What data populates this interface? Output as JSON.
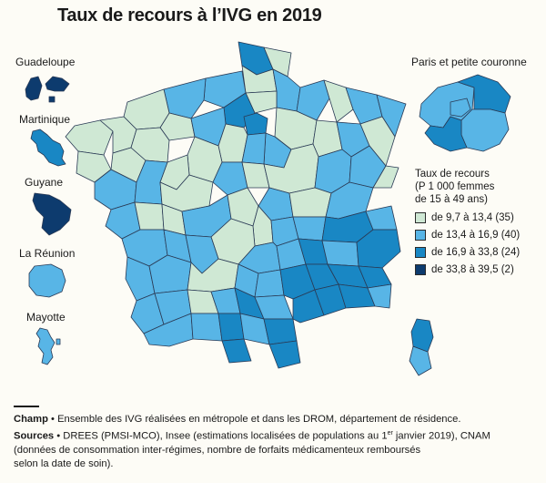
{
  "title": "Taux de recours à l’IVG en 2019",
  "colors": {
    "class1": "#cfe8d4",
    "class2": "#58b5e6",
    "class3": "#1987c4",
    "class4": "#0d3b6e",
    "border": "#2a3a55"
  },
  "drom": [
    {
      "label": "Guadeloupe",
      "class": "class4"
    },
    {
      "label": "Martinique",
      "class": "class3"
    },
    {
      "label": "Guyane",
      "class": "class4"
    },
    {
      "label": "La Réunion",
      "class": "class2"
    },
    {
      "label": "Mayotte",
      "class": "class2"
    }
  ],
  "paris_inset": {
    "label": "Paris et petite couronne"
  },
  "legend": {
    "title_line1": "Taux de recours",
    "title_line2": "(P 1 000 femmes",
    "title_line3": "de 15 à 49 ans)",
    "items": [
      {
        "label": "de 9,7 à 13,4 (35)",
        "class": "class1"
      },
      {
        "label": "de 13,4 à 16,9 (40)",
        "class": "class2"
      },
      {
        "label": "de 16,9 à 33,8 (24)",
        "class": "class3"
      },
      {
        "label": "de 33,8 à 39,5 (2)",
        "class": "class4"
      }
    ]
  },
  "notes": {
    "champ_label": "Champ",
    "champ_text": "Ensemble des IVG réalisées en métropole et dans les DROM, département de résidence.",
    "sources_label": "Sources",
    "sources_text_a": "DREES (PMSI-MCO), Insee (estimations localisées de populations au 1",
    "sources_sup": "er",
    "sources_text_b": " janvier 2019), CNAM",
    "sources_line2": "(données de consommation inter-régimes, nombre de forfaits médicamenteux remboursés",
    "sources_line3": "selon la date de soin)."
  }
}
